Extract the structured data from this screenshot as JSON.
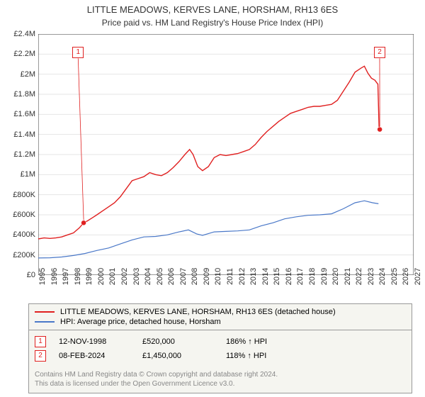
{
  "title": "LITTLE MEADOWS, KERVES LANE, HORSHAM, RH13 6ES",
  "subtitle": "Price paid vs. HM Land Registry's House Price Index (HPI)",
  "chart": {
    "type": "line",
    "background_color": "#ffffff",
    "axis_color": "#333333",
    "grid_color": "#e6e6e6",
    "xlim": [
      1995,
      2027
    ],
    "ylim": [
      0,
      2400000
    ],
    "ytick_step": 200000,
    "ytick_labels": [
      "£0",
      "£200K",
      "£400K",
      "£600K",
      "£800K",
      "£1M",
      "£1.2M",
      "£1.4M",
      "£1.6M",
      "£1.8M",
      "£2M",
      "£2.2M",
      "£2.4M"
    ],
    "xtick_step": 1,
    "xtick_labels": [
      "1995",
      "1996",
      "1997",
      "1998",
      "1999",
      "2000",
      "2001",
      "2002",
      "2003",
      "2004",
      "2005",
      "2006",
      "2007",
      "2008",
      "2009",
      "2010",
      "2011",
      "2012",
      "2013",
      "2014",
      "2015",
      "2016",
      "2017",
      "2018",
      "2019",
      "2020",
      "2021",
      "2022",
      "2023",
      "2024",
      "2025",
      "2026",
      "2027"
    ],
    "title_fontsize": 13,
    "label_fontsize": 11,
    "series": [
      {
        "name": "price_paid",
        "label": "LITTLE MEADOWS, KERVES LANE, HORSHAM, RH13 6ES (detached house)",
        "color": "#e02020",
        "line_width": 1.4,
        "data": [
          [
            1995,
            360000
          ],
          [
            1995.5,
            370000
          ],
          [
            1996,
            365000
          ],
          [
            1996.5,
            370000
          ],
          [
            1997,
            380000
          ],
          [
            1997.5,
            400000
          ],
          [
            1998,
            420000
          ],
          [
            1998.5,
            470000
          ],
          [
            1998.87,
            520000
          ],
          [
            1999.2,
            540000
          ],
          [
            1999.6,
            570000
          ],
          [
            2000,
            600000
          ],
          [
            2000.5,
            640000
          ],
          [
            2001,
            680000
          ],
          [
            2001.5,
            720000
          ],
          [
            2002,
            780000
          ],
          [
            2002.5,
            860000
          ],
          [
            2003,
            940000
          ],
          [
            2003.5,
            960000
          ],
          [
            2004,
            980000
          ],
          [
            2004.5,
            1020000
          ],
          [
            2005,
            1000000
          ],
          [
            2005.5,
            990000
          ],
          [
            2006,
            1020000
          ],
          [
            2006.5,
            1070000
          ],
          [
            2007,
            1130000
          ],
          [
            2007.5,
            1200000
          ],
          [
            2007.9,
            1250000
          ],
          [
            2008.2,
            1200000
          ],
          [
            2008.6,
            1080000
          ],
          [
            2009,
            1040000
          ],
          [
            2009.5,
            1080000
          ],
          [
            2010,
            1170000
          ],
          [
            2010.5,
            1200000
          ],
          [
            2011,
            1190000
          ],
          [
            2011.5,
            1200000
          ],
          [
            2012,
            1210000
          ],
          [
            2012.5,
            1230000
          ],
          [
            2013,
            1250000
          ],
          [
            2013.5,
            1300000
          ],
          [
            2014,
            1370000
          ],
          [
            2014.5,
            1430000
          ],
          [
            2015,
            1480000
          ],
          [
            2015.5,
            1530000
          ],
          [
            2016,
            1570000
          ],
          [
            2016.5,
            1610000
          ],
          [
            2017,
            1630000
          ],
          [
            2017.5,
            1650000
          ],
          [
            2018,
            1670000
          ],
          [
            2018.5,
            1680000
          ],
          [
            2019,
            1680000
          ],
          [
            2019.5,
            1690000
          ],
          [
            2020,
            1700000
          ],
          [
            2020.5,
            1740000
          ],
          [
            2021,
            1830000
          ],
          [
            2021.5,
            1920000
          ],
          [
            2022,
            2020000
          ],
          [
            2022.5,
            2060000
          ],
          [
            2022.8,
            2080000
          ],
          [
            2023.1,
            2010000
          ],
          [
            2023.4,
            1960000
          ],
          [
            2023.7,
            1940000
          ],
          [
            2023.95,
            1900000
          ],
          [
            2024.05,
            1480000
          ],
          [
            2024.11,
            1450000
          ]
        ]
      },
      {
        "name": "hpi",
        "label": "HPI: Average price, detached house, Horsham",
        "color": "#4a78c8",
        "line_width": 1.2,
        "data": [
          [
            1995,
            170000
          ],
          [
            1996,
            172000
          ],
          [
            1997,
            180000
          ],
          [
            1998,
            195000
          ],
          [
            1999,
            215000
          ],
          [
            2000,
            245000
          ],
          [
            2001,
            270000
          ],
          [
            2002,
            310000
          ],
          [
            2003,
            350000
          ],
          [
            2004,
            380000
          ],
          [
            2005,
            385000
          ],
          [
            2006,
            400000
          ],
          [
            2007,
            430000
          ],
          [
            2007.8,
            450000
          ],
          [
            2008.5,
            410000
          ],
          [
            2009,
            395000
          ],
          [
            2010,
            430000
          ],
          [
            2011,
            435000
          ],
          [
            2012,
            440000
          ],
          [
            2013,
            450000
          ],
          [
            2014,
            490000
          ],
          [
            2015,
            520000
          ],
          [
            2016,
            560000
          ],
          [
            2017,
            580000
          ],
          [
            2018,
            595000
          ],
          [
            2019,
            600000
          ],
          [
            2020,
            610000
          ],
          [
            2021,
            660000
          ],
          [
            2022,
            720000
          ],
          [
            2022.8,
            740000
          ],
          [
            2023.5,
            720000
          ],
          [
            2024,
            710000
          ]
        ]
      }
    ],
    "markers": [
      {
        "id": "1",
        "x": 1998.87,
        "y": 520000,
        "color": "#e02020",
        "box_x": 1998.4,
        "box_y": 2270000
      },
      {
        "id": "2",
        "x": 2024.11,
        "y": 1450000,
        "color": "#e02020",
        "box_x": 2024.1,
        "box_y": 2270000
      }
    ]
  },
  "legend": {
    "border_color": "#999999",
    "background_color": "#f5f5f0"
  },
  "transactions": [
    {
      "marker": "1",
      "date": "12-NOV-1998",
      "price": "£520,000",
      "pct": "186%",
      "arrow": "↑",
      "suffix": "HPI",
      "color": "#e02020"
    },
    {
      "marker": "2",
      "date": "08-FEB-2024",
      "price": "£1,450,000",
      "pct": "118%",
      "arrow": "↑",
      "suffix": "HPI",
      "color": "#e02020"
    }
  ],
  "footer": {
    "line1": "Contains HM Land Registry data © Crown copyright and database right 2024.",
    "line2": "This data is licensed under the Open Government Licence v3.0."
  }
}
